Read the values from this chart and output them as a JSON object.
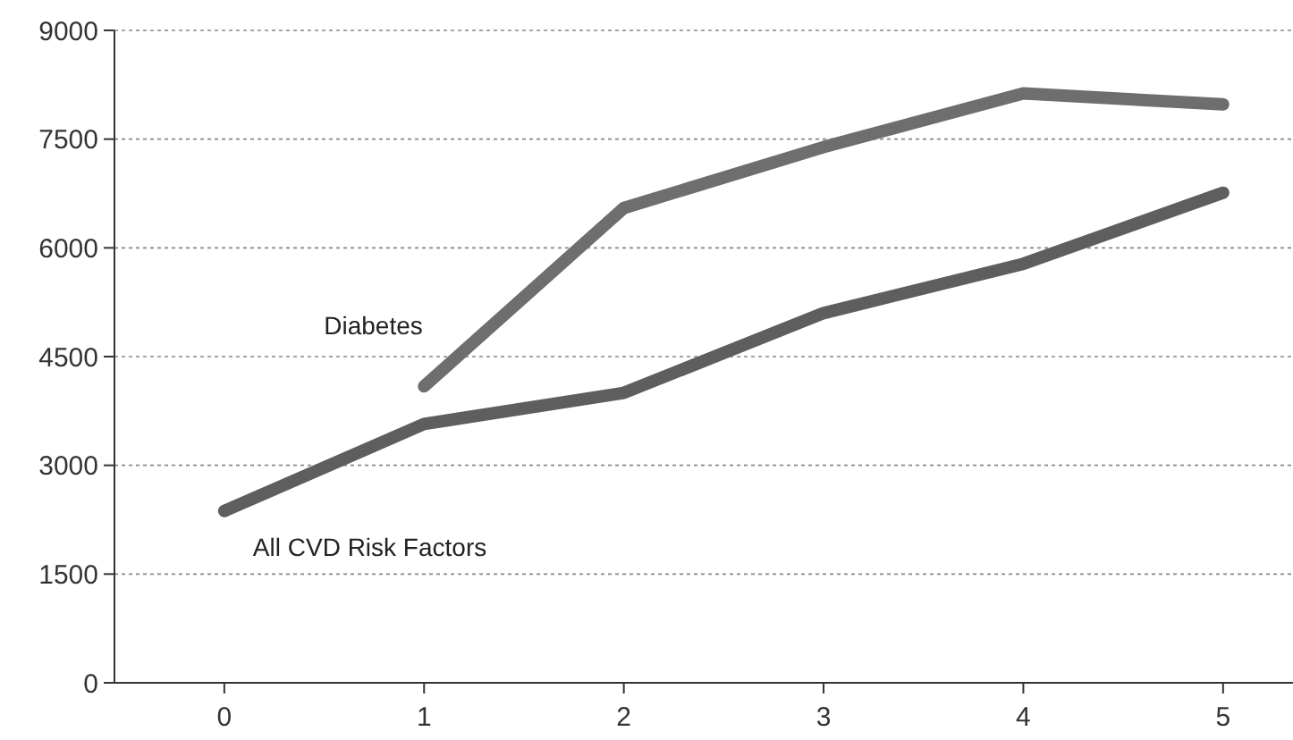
{
  "chart_data": {
    "type": "line",
    "x": [
      0,
      1,
      2,
      3,
      4,
      5
    ],
    "xlim": [
      -0.55,
      5.35
    ],
    "xticks": [
      0,
      1,
      2,
      3,
      4,
      5
    ],
    "ylim": [
      0,
      9000
    ],
    "yticks": [
      0,
      1500,
      3000,
      4500,
      6000,
      7500,
      9000
    ],
    "grid": "y",
    "marker": "none",
    "line_style": "solid",
    "series": [
      {
        "name": "Diabetes",
        "color": "#6e6e6e",
        "values": [
          null,
          4090,
          6550,
          7390,
          8130,
          7980
        ]
      },
      {
        "name": "All CVD Risk Factors",
        "color": "#5e5e5e",
        "values": [
          2370,
          3570,
          4000,
          5100,
          5780,
          6760
        ]
      }
    ]
  }
}
